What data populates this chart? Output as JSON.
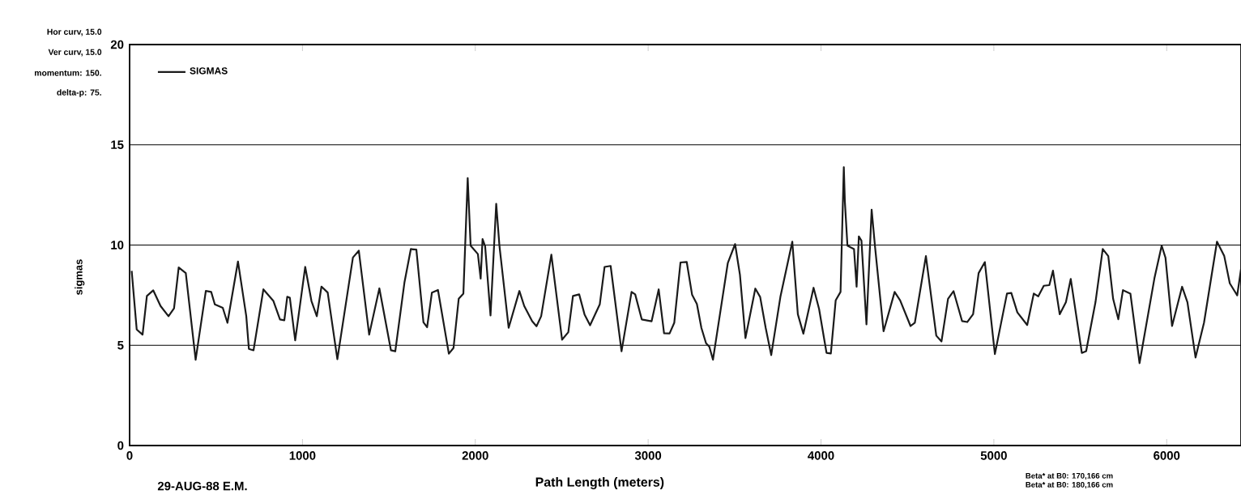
{
  "chart_data": {
    "type": "line",
    "xlabel": "Path Length (meters)",
    "ylabel": "sigmas",
    "xlim": [
      0,
      6430
    ],
    "ylim": [
      0,
      20
    ],
    "xticks": [
      0,
      1000,
      2000,
      3000,
      4000,
      5000,
      6000
    ],
    "yticks": [
      0,
      5,
      10,
      15,
      20
    ],
    "grid": "y",
    "legend": "top left",
    "marker": "none",
    "line_style": "solid",
    "annotations": [
      "Hor curv, 15.0",
      "Ver curv, 15.0",
      "momentum: 150.",
      "delta-p: 75.",
      "29-AUG-88 E.M.",
      "Beta* at B0: 170,166 cm",
      "Beta* at B0: 180,166 cm"
    ],
    "series": [
      {
        "name": "SIGMAS",
        "color": "#1a1a1a",
        "x": [
          12,
          41,
          75,
          100,
          137,
          179,
          225,
          257,
          284,
          325,
          382,
          441,
          472,
          493,
          539,
          566,
          627,
          675,
          690,
          717,
          774,
          832,
          870,
          895,
          912,
          927,
          958,
          1016,
          1052,
          1083,
          1110,
          1146,
          1202,
          1292,
          1326,
          1386,
          1445,
          1512,
          1537,
          1590,
          1627,
          1659,
          1700,
          1721,
          1749,
          1784,
          1847,
          1874,
          1904,
          1931,
          1956,
          1973,
          2015,
          2031,
          2042,
          2057,
          2088,
          2121,
          2140,
          2193,
          2255,
          2283,
          2329,
          2354,
          2381,
          2440,
          2502,
          2538,
          2565,
          2601,
          2632,
          2664,
          2720,
          2748,
          2783,
          2846,
          2904,
          2925,
          2963,
          3020,
          3061,
          3092,
          3124,
          3151,
          3187,
          3223,
          3254,
          3282,
          3308,
          3335,
          3354,
          3375,
          3414,
          3461,
          3503,
          3531,
          3563,
          3620,
          3648,
          3680,
          3712,
          3765,
          3834,
          3866,
          3898,
          3957,
          3989,
          4032,
          4057,
          4085,
          4113,
          4132,
          4138,
          4153,
          4191,
          4206,
          4219,
          4234,
          4263,
          4293,
          4313,
          4362,
          4426,
          4458,
          4518,
          4543,
          4607,
          4667,
          4697,
          4735,
          4767,
          4816,
          4846,
          4880,
          4912,
          4948,
          5006,
          5076,
          5101,
          5136,
          5193,
          5231,
          5257,
          5289,
          5321,
          5342,
          5381,
          5417,
          5445,
          5509,
          5534,
          5588,
          5630,
          5662,
          5690,
          5720,
          5747,
          5790,
          5843,
          5929,
          5971,
          5993,
          6031,
          6089,
          6120,
          6167,
          6216,
          6291,
          6333,
          6365,
          6408,
          6430
        ],
        "values": [
          8.71,
          5.79,
          5.53,
          7.46,
          7.74,
          6.96,
          6.45,
          6.84,
          8.88,
          8.6,
          4.28,
          7.71,
          7.66,
          7.04,
          6.87,
          6.12,
          9.18,
          6.45,
          4.82,
          4.75,
          7.79,
          7.21,
          6.29,
          6.25,
          7.42,
          7.37,
          5.25,
          8.91,
          7.21,
          6.45,
          7.93,
          7.63,
          4.31,
          9.38,
          9.72,
          5.53,
          7.84,
          4.75,
          4.7,
          8.13,
          9.8,
          9.77,
          6.15,
          5.9,
          7.63,
          7.76,
          4.58,
          4.87,
          7.32,
          7.58,
          13.34,
          9.97,
          9.55,
          8.33,
          10.3,
          9.93,
          6.49,
          12.06,
          9.93,
          5.87,
          7.71,
          6.96,
          6.2,
          5.95,
          6.45,
          9.52,
          5.28,
          5.65,
          7.46,
          7.54,
          6.54,
          6,
          7.04,
          8.91,
          8.96,
          4.7,
          7.66,
          7.54,
          6.29,
          6.2,
          7.79,
          5.6,
          5.59,
          6.12,
          9.13,
          9.16,
          7.53,
          7.06,
          5.87,
          5.1,
          4.93,
          4.28,
          6.47,
          9.11,
          10.05,
          8.52,
          5.36,
          7.83,
          7.41,
          5.87,
          4.51,
          7.41,
          10.17,
          6.55,
          5.58,
          7.87,
          6.81,
          4.62,
          4.59,
          7.24,
          7.66,
          13.89,
          12.18,
          9.97,
          9.8,
          7.92,
          10.43,
          10.22,
          6.04,
          11.76,
          9.88,
          5.7,
          7.66,
          7.24,
          5.96,
          6.13,
          9.45,
          5.48,
          5.19,
          7.32,
          7.7,
          6.21,
          6.16,
          6.55,
          8.6,
          9.15,
          4.56,
          7.58,
          7.61,
          6.64,
          6.01,
          7.58,
          7.44,
          7.97,
          8,
          8.72,
          6.55,
          7.15,
          8.31,
          4.62,
          4.71,
          7.15,
          9.8,
          9.45,
          7.32,
          6.3,
          7.75,
          7.58,
          4.11,
          8.34,
          9.97,
          9.37,
          5.96,
          7.92,
          7.15,
          4.39,
          6.13,
          10.17,
          9.45,
          8.09,
          7.49,
          8.8
        ]
      }
    ]
  }
}
